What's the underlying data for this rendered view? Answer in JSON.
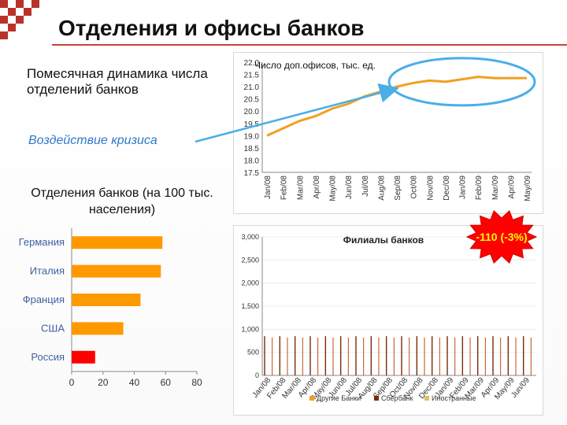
{
  "slide": {
    "title": "Отделения и офисы банков",
    "subtitle": "Помесячная динамика числа отделений банков",
    "crisis_note": "Воздействие кризиса",
    "banks_chart_title": "Отделения банков (на 100 тыс. населения)"
  },
  "colors": {
    "accent": "#c9433a",
    "crisis_blue": "#2f79c7",
    "line_orange": "#f0a020",
    "bar_orange": "#ff9900",
    "bar_red": "#ff0000",
    "highlight_circle": "#4aaee8",
    "burst_red": "#ff0000",
    "burst_text": "#ffff00",
    "spike_dark": "#7a2a08"
  },
  "chart_data": [
    {
      "type": "line",
      "title": "Число доп.офисов, тыс. ед.",
      "x": [
        "Jan/08",
        "Feb/08",
        "Mar/08",
        "Apr/08",
        "May/08",
        "Jun/08",
        "Jul/08",
        "Aug/08",
        "Sep/08",
        "Oct/08",
        "Nov/08",
        "Dec/08",
        "Jan/09",
        "Feb/09",
        "Mar/09",
        "Apr/09",
        "May/09"
      ],
      "series": [
        {
          "values": [
            19.0,
            19.3,
            19.6,
            19.8,
            20.1,
            20.3,
            20.6,
            20.8,
            21.0,
            21.15,
            21.25,
            21.2,
            21.3,
            21.4,
            21.35,
            21.35,
            21.35
          ]
        }
      ],
      "ylim": [
        17.5,
        22.0
      ],
      "yticks": [
        "17.5",
        "18.0",
        "18.5",
        "19.0",
        "19.5",
        "20.0",
        "20.5",
        "21.0",
        "21.5",
        "22.0"
      ],
      "highlight_range": [
        "Sep/08",
        "May/09"
      ]
    },
    {
      "type": "bar",
      "orientation": "horizontal",
      "title": "Отделения банков (на 100 тыс. населения)",
      "categories": [
        "Германия",
        "Италия",
        "Франция",
        "США",
        "Россия"
      ],
      "values": [
        58,
        57,
        44,
        33,
        15
      ],
      "xlim": [
        0,
        80
      ],
      "xticks": [
        "0",
        "20",
        "40",
        "60",
        "80"
      ]
    },
    {
      "type": "bar",
      "title": "Филиалы банков",
      "x": [
        "Jan/08",
        "Feb/08",
        "Mar/08",
        "Apr/08",
        "May/08",
        "Jun/08",
        "Jul/08",
        "Aug/08",
        "Sep/08",
        "Oct/08",
        "Nov/08",
        "Dec/08",
        "Jan/09",
        "Feb/09",
        "Mar/09",
        "Apr/09",
        "May/09",
        "Jun/09"
      ],
      "ylim": [
        0,
        3000
      ],
      "yticks": [
        "0",
        "500",
        "1,000",
        "1,500",
        "2,000",
        "2,500",
        "3,000"
      ],
      "legend": [
        "Другие Банки",
        "Сбербанк",
        "Иностранные"
      ],
      "callout": "-110 (-3%)"
    }
  ]
}
